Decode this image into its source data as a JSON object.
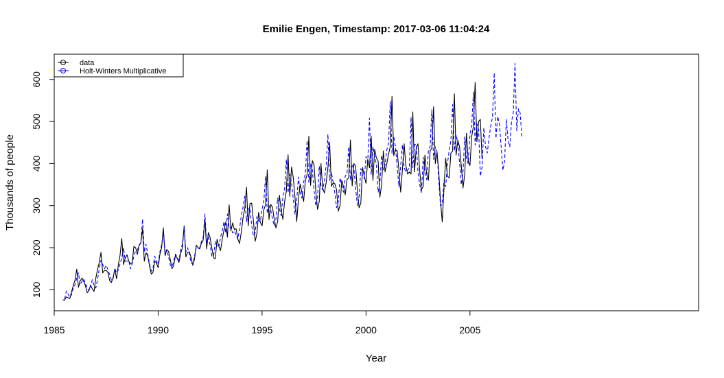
{
  "chart_data": {
    "type": "line",
    "title": "Emilie Engen, Timestamp: 2017-03-06 11:04:24",
    "xlabel": "Year",
    "ylabel": "Thousands of people",
    "xlim": [
      1985.0,
      2016.0
    ],
    "ylim": [
      50,
      660
    ],
    "x_ticks": [
      1985,
      1990,
      1995,
      2000,
      2005
    ],
    "y_ticks": [
      100,
      200,
      300,
      400,
      500,
      600
    ],
    "x_tick_labels": [
      "1985",
      "1990",
      "1995",
      "2000",
      "2005"
    ],
    "y_tick_labels": [
      "100",
      "200",
      "300",
      "400",
      "500",
      "600"
    ],
    "grid": false,
    "legend_position": "top-left",
    "legend": [
      {
        "label": "data",
        "color": "#000000"
      },
      {
        "label": "Holt-Winters Multiplicative",
        "color": "#0000ff"
      }
    ],
    "series": [
      {
        "name": "data",
        "color": "#000000",
        "style": "solid",
        "x_start": 1985.4167,
        "step": 0.0833333,
        "values": [
          76,
          75,
          83,
          81,
          79,
          95,
          110,
          123,
          149,
          106,
          121,
          128,
          120,
          110,
          93,
          98,
          111,
          102,
          96,
          127,
          148,
          165,
          189,
          140,
          146,
          146,
          141,
          122,
          117,
          129,
          149,
          126,
          159,
          182,
          222,
          160,
          175,
          183,
          169,
          161,
          165,
          203,
          200,
          184,
          205,
          211,
          245,
          168,
          188,
          180,
          158,
          137,
          141,
          168,
          164,
          152,
          184,
          200,
          247,
          181,
          195,
          191,
          172,
          150,
          158,
          182,
          175,
          165,
          186,
          200,
          252,
          178,
          189,
          190,
          177,
          158,
          173,
          206,
          200,
          197,
          211,
          218,
          268,
          197,
          236,
          224,
          199,
          176,
          174,
          220,
          204,
          193,
          220,
          242,
          261,
          225,
          302,
          240,
          259,
          243,
          245,
          221,
          210,
          237,
          271,
          292,
          344,
          252,
          305,
          306,
          263,
          215,
          233,
          284,
          260,
          252,
          290,
          302,
          385,
          267,
          303,
          296,
          268,
          247,
          262,
          325,
          290,
          267,
          310,
          334,
          421,
          322,
          392,
          367,
          320,
          262,
          316,
          351,
          331,
          310,
          360,
          374,
          465,
          348,
          407,
          397,
          335,
          291,
          310,
          400,
          341,
          330,
          355,
          390,
          450,
          346,
          354,
          352,
          337,
          287,
          300,
          360,
          345,
          326,
          362,
          366,
          456,
          347,
          400,
          394,
          336,
          295,
          306,
          391,
          370,
          353,
          410,
          390,
          465,
          360,
          434,
          413,
          406,
          320,
          350,
          430,
          380,
          400,
          422,
          440,
          560,
          419,
          433,
          430,
          383,
          332,
          385,
          447,
          395,
          375,
          380,
          375,
          523,
          380,
          438,
          447,
          382,
          338,
          345,
          420,
          375,
          360,
          430,
          437,
          535,
          400,
          428,
          380,
          311,
          261,
          340,
          413,
          370,
          366,
          425,
          430,
          566,
          420,
          455,
          440,
          395,
          342,
          375,
          472,
          406,
          395,
          464,
          489,
          593,
          452,
          500,
          505,
          410
        ]
      },
      {
        "name": "Holt-Winters Multiplicative",
        "color": "#0000ff",
        "style": "dashed",
        "x_start": 1985.5,
        "step": 0.0833333,
        "values": [
          78,
          97,
          90,
          82,
          88,
          105,
          112,
          128,
          140,
          112,
          120,
          126,
          115,
          105,
          97,
          110,
          124,
          110,
          104,
          124,
          150,
          170,
          160,
          150,
          158,
          148,
          136,
          123,
          125,
          151,
          140,
          147,
          162,
          175,
          200,
          168,
          168,
          170,
          150,
          162,
          180,
          193,
          194,
          206,
          212,
          268,
          190,
          208,
          184,
          162,
          144,
          150,
          180,
          168,
          160,
          190,
          206,
          236,
          186,
          196,
          178,
          158,
          155,
          168,
          185,
          176,
          170,
          195,
          208,
          250,
          190,
          200,
          186,
          165,
          160,
          180,
          200,
          198,
          200,
          215,
          224,
          280,
          210,
          225,
          206,
          180,
          180,
          215,
          205,
          200,
          225,
          240,
          262,
          235,
          280,
          247,
          249,
          235,
          240,
          230,
          220,
          245,
          276,
          296,
          322,
          262,
          294,
          292,
          253,
          228,
          236,
          274,
          264,
          262,
          291,
          310,
          370,
          282,
          300,
          289,
          269,
          252,
          268,
          318,
          293,
          276,
          320,
          340,
          410,
          330,
          375,
          354,
          316,
          280,
          313,
          368,
          330,
          318,
          356,
          378,
          455,
          355,
          400,
          385,
          336,
          300,
          318,
          394,
          347,
          337,
          360,
          396,
          470,
          360,
          380,
          356,
          330,
          295,
          310,
          366,
          348,
          332,
          370,
          376,
          440,
          360,
          398,
          388,
          342,
          300,
          318,
          388,
          372,
          364,
          417,
          404,
          508,
          374,
          440,
          416,
          398,
          332,
          355,
          420,
          385,
          398,
          432,
          448,
          548,
          424,
          465,
          440,
          390,
          345,
          395,
          445,
          390,
          380,
          384,
          390,
          510,
          390,
          445,
          446,
          380,
          350,
          330,
          415,
          380,
          362,
          430,
          440,
          528,
          410,
          440,
          428,
          360,
          300,
          302,
          360,
          345,
          400,
          430,
          455,
          540,
          430,
          468,
          450,
          402,
          350,
          380,
          464,
          412,
          400,
          470,
          490,
          570,
          444,
          495,
          480,
          370,
          392,
          485,
          440,
          425,
          460,
          490,
          510,
          615,
          460,
          512,
          495,
          440,
          384,
          405,
          505,
          455,
          440,
          500,
          520,
          638,
          478,
          530,
          520,
          462
        ]
      }
    ]
  }
}
